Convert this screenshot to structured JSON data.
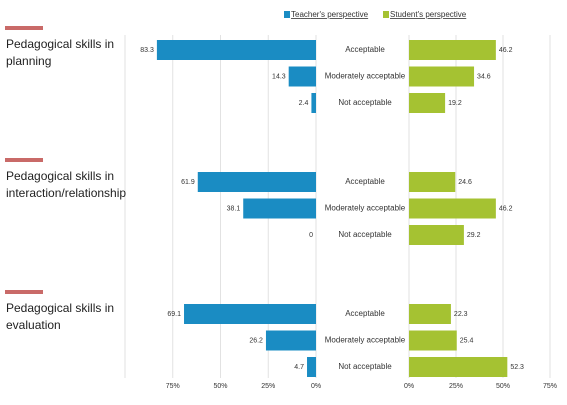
{
  "chart_data": {
    "type": "bar",
    "groups": [
      "Pedagogical skills in planning",
      "Pedagogical skills in interaction/relationship",
      "Pedagogical skills in evaluation"
    ],
    "categories": [
      "Acceptable",
      "Moderately acceptable",
      "Not acceptable",
      "Acceptable",
      "Moderately acceptable",
      "Not acceptable",
      "Acceptable",
      "Moderately acceptable",
      "Not acceptable"
    ],
    "series": [
      {
        "name": "Teacher's perspective",
        "color": "#1a8cc3",
        "values": [
          83.3,
          14.3,
          2.4,
          61.9,
          38.1,
          0,
          69.1,
          26.2,
          4.7
        ],
        "xlim": [
          0,
          100
        ],
        "xticks": [
          {
            "value": 0,
            "label": "0%"
          },
          {
            "value": 25,
            "label": "25%"
          },
          {
            "value": 50,
            "label": "50%"
          },
          {
            "value": 75,
            "label": "75%"
          }
        ]
      },
      {
        "name": "Student's perspective",
        "color": "#a5c232",
        "values": [
          46.2,
          34.6,
          19.2,
          24.6,
          46.2,
          29.2,
          22.3,
          25.4,
          52.3
        ],
        "xlim": [
          0,
          75
        ],
        "xticks": [
          {
            "value": 0,
            "label": "0%"
          },
          {
            "value": 25,
            "label": "25%"
          },
          {
            "value": 50,
            "label": "50%"
          },
          {
            "value": 75,
            "label": "75%"
          }
        ]
      }
    ]
  }
}
